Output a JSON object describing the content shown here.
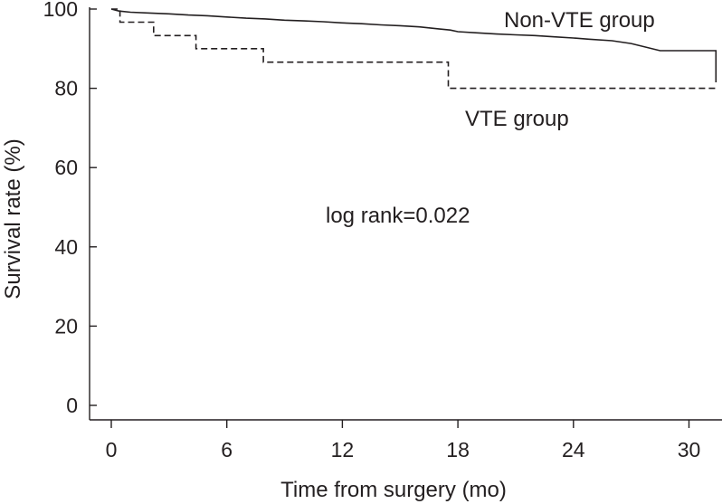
{
  "chart_data": {
    "type": "line",
    "subtype": "kaplan-meier step",
    "title": "",
    "xlabel": "Time from surgery (mo)",
    "ylabel": "Survival rate (%)",
    "xlim": [
      0,
      31.5
    ],
    "ylim": [
      0,
      100
    ],
    "xticks": [
      0,
      6,
      12,
      18,
      24,
      30
    ],
    "yticks": [
      0,
      20,
      40,
      60,
      80,
      100
    ],
    "grid": false,
    "annotation": "log rank=0.022",
    "series": [
      {
        "name": "Non-VTE group",
        "style": "solid",
        "color": "#231f20",
        "x": [
          0,
          0.4,
          1.0,
          2.0,
          3.0,
          4.0,
          5.0,
          6.0,
          7.0,
          8.0,
          9.0,
          10.0,
          11.0,
          12.0,
          13.0,
          14.0,
          15.0,
          16.0,
          17.0,
          17.6,
          18.0,
          19.0,
          20.0,
          21.0,
          22.0,
          23.0,
          24.0,
          24.8,
          26.0,
          27.0,
          28.5,
          30.0,
          31.4,
          31.4
        ],
        "y": [
          100,
          99.5,
          99.2,
          99.0,
          98.8,
          98.5,
          98.3,
          98.0,
          97.7,
          97.5,
          97.2,
          97.0,
          96.8,
          96.5,
          96.3,
          96.0,
          95.8,
          95.5,
          95.0,
          94.7,
          94.3,
          94.0,
          93.7,
          93.5,
          93.3,
          93.0,
          92.7,
          92.4,
          92.0,
          91.3,
          89.5,
          89.5,
          89.5,
          81.5
        ]
      },
      {
        "name": "VTE group",
        "style": "dashed",
        "color": "#231f20",
        "x": [
          0,
          0.45,
          0.45,
          2.2,
          2.2,
          4.4,
          4.4,
          7.9,
          7.9,
          17.5,
          17.5,
          31.5
        ],
        "y": [
          100,
          100,
          96.7,
          96.7,
          93.3,
          93.3,
          90.0,
          90.0,
          86.6,
          86.6,
          80.0,
          80.0
        ]
      }
    ],
    "series_labels": [
      "Non-VTE group",
      "VTE group"
    ]
  }
}
